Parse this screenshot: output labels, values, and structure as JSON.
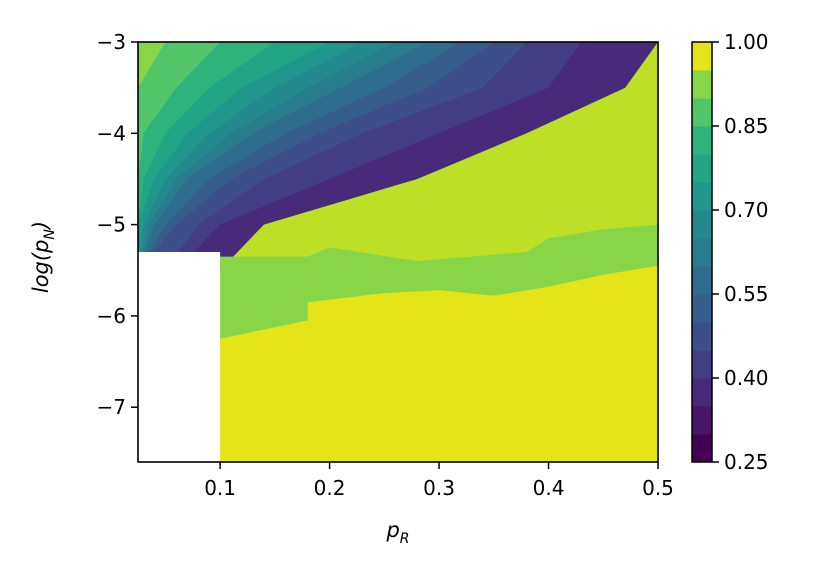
{
  "chart_data": {
    "type": "heatmap",
    "subtype": "filled-contour",
    "xlabel_base": "p",
    "xlabel_sub": "R",
    "ylabel_prefix": "log(p",
    "ylabel_sub": "N",
    "ylabel_suffix": ")",
    "xlim": [
      0.025,
      0.5
    ],
    "ylim": [
      -7.6,
      -3.0
    ],
    "x_ticks": [
      "0.1",
      "0.2",
      "0.3",
      "0.4",
      "0.5"
    ],
    "x_tick_values": [
      0.1,
      0.2,
      0.3,
      0.4,
      0.5
    ],
    "y_ticks": [
      "−3",
      "−4",
      "−5",
      "−6",
      "−7"
    ],
    "y_tick_values": [
      -3,
      -4,
      -5,
      -6,
      -7
    ],
    "colorbar": {
      "colormap": "viridis",
      "range": [
        0.25,
        1.0
      ],
      "levels": 15,
      "tick_labels": [
        "1.00",
        "0.85",
        "0.70",
        "0.55",
        "0.40",
        "0.25"
      ],
      "tick_values": [
        1.0,
        0.85,
        0.7,
        0.55,
        0.4,
        0.25
      ]
    },
    "missing_region": {
      "x": [
        0.025,
        0.1
      ],
      "y": [
        -7.6,
        -5.3
      ]
    },
    "y_grid": [
      -3.0,
      -3.5,
      -4.0,
      -4.5,
      -5.0,
      -5.5,
      -6.0,
      -6.5,
      -7.0,
      -7.6
    ],
    "contour_rows": [
      {
        "y": -3.0,
        "x": [
          0.05,
          0.1,
          0.15,
          0.2,
          0.23,
          0.26,
          0.29,
          0.32,
          0.35,
          0.38,
          0.43,
          0.5
        ]
      },
      {
        "y": -3.5,
        "x": [
          0.025,
          0.06,
          0.09,
          0.12,
          0.15,
          0.18,
          0.21,
          0.25,
          0.29,
          0.34,
          0.4,
          0.47
        ]
      },
      {
        "y": -4.0,
        "x": [
          0.025,
          0.03,
          0.05,
          0.07,
          0.09,
          0.11,
          0.13,
          0.16,
          0.19,
          0.23,
          0.3,
          0.38
        ]
      },
      {
        "y": -4.5,
        "x": [
          0.025,
          0.025,
          0.03,
          0.04,
          0.05,
          0.06,
          0.07,
          0.09,
          0.11,
          0.14,
          0.2,
          0.28
        ]
      },
      {
        "y": -5.0,
        "x": [
          0.025,
          0.025,
          0.025,
          0.025,
          0.03,
          0.035,
          0.04,
          0.05,
          0.06,
          0.08,
          0.1,
          0.14
        ]
      },
      {
        "y": -5.5,
        "x": [
          0.025,
          0.025,
          0.025,
          0.025,
          0.025,
          0.025,
          0.025,
          0.025,
          0.025,
          0.05,
          0.06,
          0.1
        ]
      },
      {
        "y": -6.0,
        "x": [
          0.025,
          0.025,
          0.025,
          0.025,
          0.025,
          0.025,
          0.025,
          0.025,
          0.025,
          0.025,
          0.025,
          0.1
        ]
      },
      {
        "y": -6.5,
        "x": [
          0.025,
          0.025,
          0.025,
          0.025,
          0.025,
          0.025,
          0.025,
          0.025,
          0.025,
          0.025,
          0.025,
          0.025
        ]
      },
      {
        "y": -7.0,
        "x": [
          0.025,
          0.025,
          0.025,
          0.025,
          0.025,
          0.025,
          0.025,
          0.025,
          0.025,
          0.025,
          0.025,
          0.025
        ]
      },
      {
        "y": -7.6,
        "x": [
          0.025,
          0.025,
          0.025,
          0.025,
          0.025,
          0.025,
          0.025,
          0.025,
          0.025,
          0.025,
          0.025,
          0.025
        ]
      }
    ],
    "top_band_boundary": [
      {
        "x": 0.1,
        "y": -6.25
      },
      {
        "x": 0.18,
        "y": -6.05
      },
      {
        "x": 0.18,
        "y": -5.85
      },
      {
        "x": 0.25,
        "y": -5.75
      },
      {
        "x": 0.3,
        "y": -5.72
      },
      {
        "x": 0.35,
        "y": -5.78
      },
      {
        "x": 0.4,
        "y": -5.68
      },
      {
        "x": 0.45,
        "y": -5.55
      },
      {
        "x": 0.5,
        "y": -5.45
      }
    ],
    "boundary_from": [
      {
        "x": 0.1,
        "y": -5.35
      },
      {
        "x": 0.18,
        "y": -5.35
      },
      {
        "x": 0.2,
        "y": -5.25
      },
      {
        "x": 0.28,
        "y": -5.4
      },
      {
        "x": 0.38,
        "y": -5.3
      },
      {
        "x": 0.4,
        "y": -5.15
      },
      {
        "x": 0.45,
        "y": -5.05
      },
      {
        "x": 0.5,
        "y": -5.0
      }
    ]
  }
}
